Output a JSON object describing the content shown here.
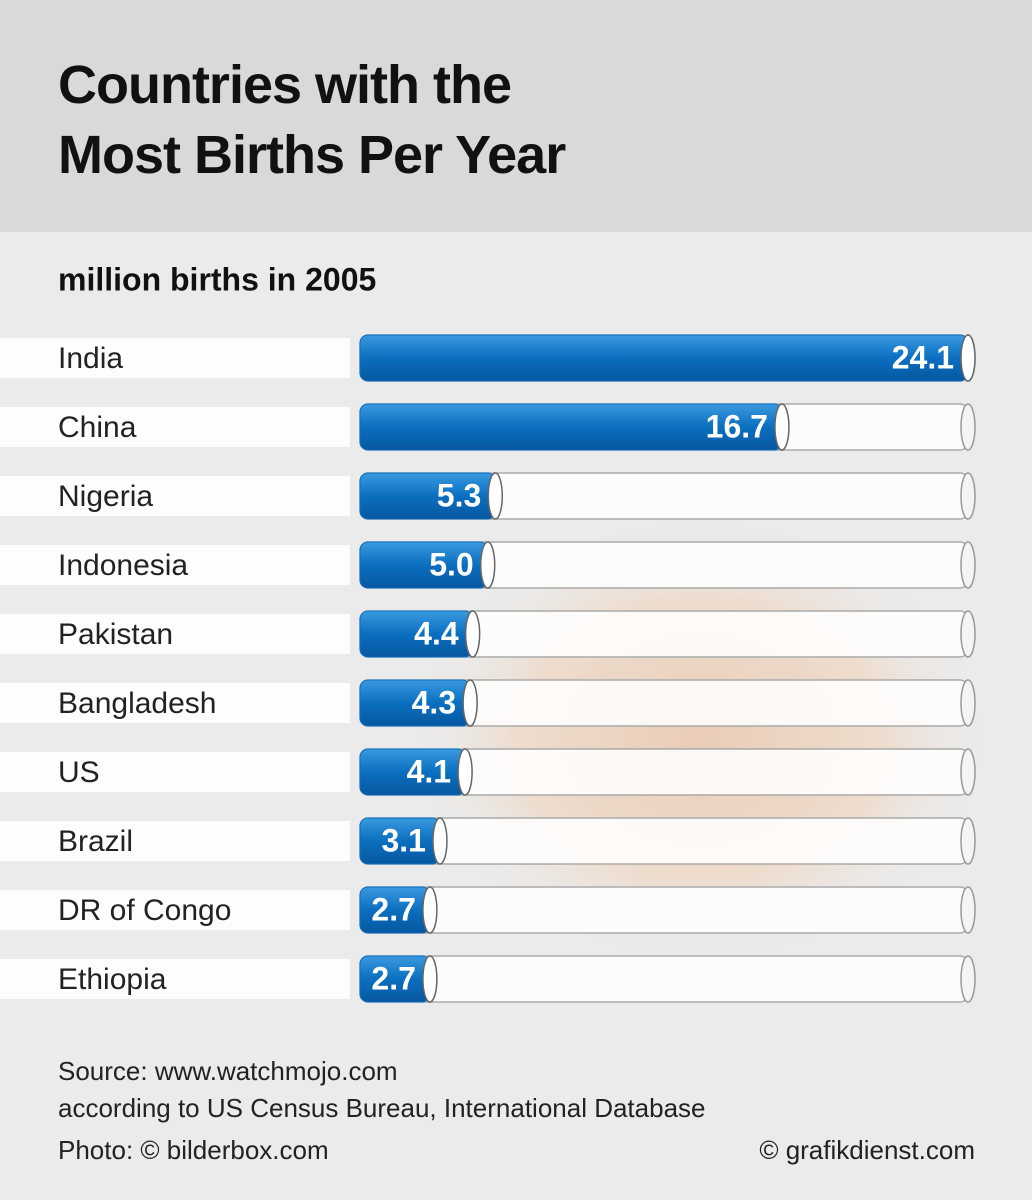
{
  "chart_data": {
    "type": "bar",
    "title": "Countries with the Most Births Per Year",
    "subtitle": "million births in 2005",
    "categories": [
      "India",
      "China",
      "Nigeria",
      "Indonesia",
      "Pakistan",
      "Bangladesh",
      "US",
      "Brazil",
      "DR of Congo",
      "Ethiopia"
    ],
    "values": [
      24.1,
      16.7,
      5.3,
      5.0,
      4.4,
      4.3,
      4.1,
      3.1,
      2.7,
      2.7
    ],
    "value_labels": [
      "24.1",
      "16.7",
      "5.3",
      "5.0",
      "4.4",
      "4.3",
      "4.1",
      "3.1",
      "2.7",
      "2.7"
    ],
    "color": "#0b6fc0",
    "notes": [
      "Source: www.watchmojo.com",
      "according to US Census Bureau, International Database",
      "Photo: © bilderbox.com"
    ],
    "credit": "© grafikdienst.com"
  }
}
